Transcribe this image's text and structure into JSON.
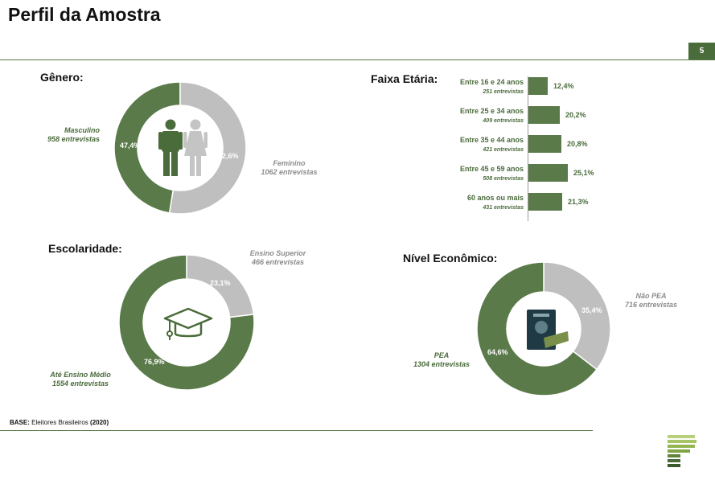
{
  "header": {
    "title": "Perfil da Amostra",
    "page_number": "5"
  },
  "footer": {
    "base_label": "BASE:",
    "base_text": " Eleitores Brasileiros ",
    "base_year": "(2020)"
  },
  "colors": {
    "green": "#5a7a4a",
    "grey": "#bfbfbf",
    "dark_green": "#4a6b3a"
  },
  "icons": [
    "male-person-icon",
    "female-person-icon",
    "graduation-cap-icon",
    "work-card-icon",
    "brand-logo-icon"
  ],
  "chart_data": [
    {
      "type": "pie",
      "title": "Gênero:",
      "slices": [
        {
          "name": "Masculino",
          "count_label": "958 entrevistas",
          "value": 47.4,
          "value_label": "47,4%",
          "color": "#5a7a4a"
        },
        {
          "name": "Feminino",
          "count_label": "1062 entrevistas",
          "value": 52.6,
          "value_label": "52,6%",
          "color": "#bfbfbf"
        }
      ]
    },
    {
      "type": "bar",
      "title": "Faixa Etária:",
      "categories": [
        "Entre 16 e 24 anos",
        "Entre 25 e 34 anos",
        "Entre 35 e 44 anos",
        "Entre 45 e 59 anos",
        "60 anos ou mais"
      ],
      "counts": [
        "251 entrevistas",
        "409 entrevistas",
        "421 entrevistas",
        "508 entrevistas",
        "431 entrevistas"
      ],
      "values": [
        12.4,
        20.2,
        20.8,
        25.1,
        21.3
      ],
      "value_labels": [
        "12,4%",
        "20,2%",
        "20,8%",
        "25,1%",
        "21,3%"
      ]
    },
    {
      "type": "pie",
      "title": "Escolaridade:",
      "slices": [
        {
          "name": "Ensino Superior",
          "count_label": "466 entrevistas",
          "value": 23.1,
          "value_label": "23,1%",
          "color": "#bfbfbf"
        },
        {
          "name": "Até Ensino Médio",
          "count_label": "1554 entrevistas",
          "value": 76.9,
          "value_label": "76,9%",
          "color": "#5a7a4a"
        }
      ]
    },
    {
      "type": "pie",
      "title": "Nível Econômico:",
      "slices": [
        {
          "name": "Não PEA",
          "count_label": "716 entrevistas",
          "value": 35.4,
          "value_label": "35,4%",
          "color": "#bfbfbf"
        },
        {
          "name": "PEA",
          "count_label": "1304 entrevistas",
          "value": 64.6,
          "value_label": "64,6%",
          "color": "#5a7a4a"
        }
      ]
    }
  ]
}
